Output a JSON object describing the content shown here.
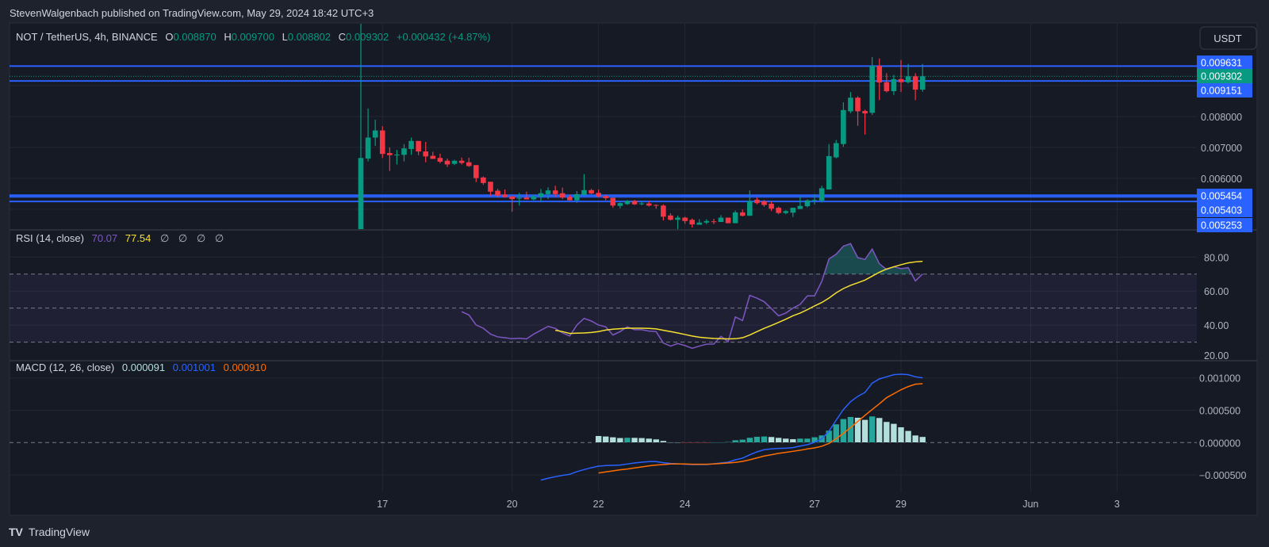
{
  "publisher_line": "StevenWalgenbach published on TradingView.com, May 29, 2024 18:42 UTC+3",
  "legend": {
    "symbol": "NOT / TetherUS, 4h, BINANCE",
    "o_label": "O",
    "o": "0.008870",
    "h_label": "H",
    "h": "0.009700",
    "l_label": "L",
    "l": "0.008802",
    "c_label": "C",
    "c": "0.009302",
    "change": "+0.000432 (+4.87%)"
  },
  "currency_button": "USDT",
  "colors": {
    "up": "#089981",
    "down": "#f23645",
    "level_line": "#2962ff",
    "rsi": "#7e57c2",
    "rsi_ma": "#f5e02f",
    "macd": "#2962ff",
    "signal": "#ff6d00",
    "hist_up_strong": "#26a69a",
    "hist_up_weak": "#b2dfdb",
    "hist_down_strong": "#ff5252",
    "hist_down_weak": "#ffcdd2"
  },
  "price_axis": {
    "ticks": [
      "0.008000",
      "0.007000",
      "0.006000"
    ],
    "tick_values": [
      0.008,
      0.007,
      0.006
    ],
    "levels": [
      {
        "label": "0.009631",
        "value": 0.009631
      },
      {
        "label": "0.009151",
        "value": 0.009151
      },
      {
        "label": "0.005454",
        "value": 0.005454
      },
      {
        "label": "0.005403",
        "value": 0.005403
      },
      {
        "label": "0.005253",
        "value": 0.005253
      }
    ],
    "last_price": {
      "label": "0.009302",
      "value": 0.009302
    }
  },
  "time_axis": {
    "labels": [
      "17",
      "20",
      "22",
      "24",
      "27",
      "29",
      "Jun",
      "3"
    ],
    "label_candle_index": [
      3,
      21,
      33,
      45,
      63,
      75,
      93,
      105
    ]
  },
  "rsi": {
    "title": "RSI (14, close)",
    "value": "70.07",
    "ma_value": "77.54",
    "empty_values": [
      "∅",
      "∅",
      "∅",
      "∅"
    ],
    "axis": [
      "80.00",
      "60.00",
      "40.00",
      "20.00"
    ],
    "axis_values": [
      80,
      60,
      40,
      20
    ],
    "band": [
      30,
      70
    ],
    "middle": 50
  },
  "macd": {
    "title": "MACD (12, 26, close)",
    "hist_value": "0.000091",
    "macd_value": "0.001001",
    "signal_value": "0.000910",
    "axis": [
      "0.001000",
      "0.000500",
      "0.000000",
      "−0.000500"
    ],
    "axis_values": [
      0.001,
      0.0005,
      0,
      -0.0005
    ]
  },
  "footer_brand": "TradingView",
  "chart_data": {
    "type": "candlestick",
    "interval": "4h",
    "first_candle": "May 16 12:00",
    "ohlc": [
      [
        0.004,
        0.011,
        0.004,
        0.00666
      ],
      [
        0.00664,
        0.00826,
        0.00655,
        0.00732
      ],
      [
        0.00732,
        0.0079,
        0.00705,
        0.00755
      ],
      [
        0.00755,
        0.00769,
        0.00666,
        0.00679
      ],
      [
        0.00682,
        0.007,
        0.00624,
        0.00675
      ],
      [
        0.00675,
        0.00692,
        0.00645,
        0.00677
      ],
      [
        0.00676,
        0.00711,
        0.00655,
        0.00697
      ],
      [
        0.00695,
        0.00732,
        0.00676,
        0.00721
      ],
      [
        0.00721,
        0.00721,
        0.00675,
        0.00687
      ],
      [
        0.00687,
        0.00718,
        0.00652,
        0.00671
      ],
      [
        0.00673,
        0.00686,
        0.00663,
        0.00663
      ],
      [
        0.00666,
        0.0068,
        0.00649,
        0.00654
      ],
      [
        0.00657,
        0.00664,
        0.00637,
        0.00645
      ],
      [
        0.00647,
        0.0066,
        0.00643,
        0.00657
      ],
      [
        0.00657,
        0.00667,
        0.00645,
        0.0065
      ],
      [
        0.00652,
        0.00667,
        0.00637,
        0.0064
      ],
      [
        0.00643,
        0.00643,
        0.00588,
        0.00601
      ],
      [
        0.00603,
        0.00606,
        0.00579,
        0.00585
      ],
      [
        0.00589,
        0.00589,
        0.00543,
        0.00557
      ],
      [
        0.0056,
        0.00566,
        0.00538,
        0.00544
      ],
      [
        0.00548,
        0.00564,
        0.00538,
        0.0054
      ],
      [
        0.00542,
        0.00542,
        0.00492,
        0.00533
      ],
      [
        0.00536,
        0.00553,
        0.00512,
        0.00537
      ],
      [
        0.00538,
        0.00557,
        0.00532,
        0.00532
      ],
      [
        0.00532,
        0.00547,
        0.00529,
        0.00542
      ],
      [
        0.00541,
        0.00566,
        0.00525,
        0.00552
      ],
      [
        0.00549,
        0.00571,
        0.00533,
        0.00561
      ],
      [
        0.00561,
        0.00576,
        0.0054,
        0.00549
      ],
      [
        0.00552,
        0.0057,
        0.00533,
        0.00538
      ],
      [
        0.0054,
        0.00547,
        0.00529,
        0.00529
      ],
      [
        0.00529,
        0.00559,
        0.00521,
        0.00549
      ],
      [
        0.00546,
        0.00614,
        0.00546,
        0.00562
      ],
      [
        0.00562,
        0.00566,
        0.00549,
        0.00551
      ],
      [
        0.00553,
        0.00564,
        0.00539,
        0.00542
      ],
      [
        0.00543,
        0.00547,
        0.00529,
        0.00536
      ],
      [
        0.00537,
        0.00537,
        0.00505,
        0.00512
      ],
      [
        0.00511,
        0.00522,
        0.00503,
        0.0052
      ],
      [
        0.00517,
        0.0053,
        0.00514,
        0.00527
      ],
      [
        0.00527,
        0.0053,
        0.00514,
        0.00516
      ],
      [
        0.00518,
        0.00527,
        0.00513,
        0.00519
      ],
      [
        0.00519,
        0.00527,
        0.00509,
        0.00512
      ],
      [
        0.00514,
        0.00516,
        0.00502,
        0.00513
      ],
      [
        0.00512,
        0.00516,
        0.00464,
        0.00476
      ],
      [
        0.0048,
        0.00487,
        0.00464,
        0.00466
      ],
      [
        0.00466,
        0.0048,
        0.00434,
        0.00473
      ],
      [
        0.00473,
        0.00476,
        0.00453,
        0.00462
      ],
      [
        0.00466,
        0.0047,
        0.00441,
        0.00451
      ],
      [
        0.0045,
        0.00468,
        0.0045,
        0.00457
      ],
      [
        0.00457,
        0.00468,
        0.00452,
        0.00462
      ],
      [
        0.00461,
        0.00469,
        0.00452,
        0.0046
      ],
      [
        0.00459,
        0.00481,
        0.00459,
        0.00473
      ],
      [
        0.00473,
        0.00473,
        0.00455,
        0.00455
      ],
      [
        0.00455,
        0.00496,
        0.00455,
        0.0049
      ],
      [
        0.0049,
        0.00499,
        0.00477,
        0.00479
      ],
      [
        0.00479,
        0.00561,
        0.00479,
        0.00527
      ],
      [
        0.00531,
        0.00538,
        0.00516,
        0.0052
      ],
      [
        0.00526,
        0.0053,
        0.00508,
        0.00514
      ],
      [
        0.00518,
        0.00525,
        0.00494,
        0.00502
      ],
      [
        0.00505,
        0.00509,
        0.00484,
        0.00488
      ],
      [
        0.00488,
        0.00497,
        0.00484,
        0.00494
      ],
      [
        0.00489,
        0.00505,
        0.00475,
        0.00505
      ],
      [
        0.00501,
        0.00542,
        0.00501,
        0.00511
      ],
      [
        0.0051,
        0.00532,
        0.00506,
        0.00529
      ],
      [
        0.00528,
        0.00549,
        0.00515,
        0.0053
      ],
      [
        0.00528,
        0.00576,
        0.00522,
        0.00568
      ],
      [
        0.00564,
        0.00711,
        0.00564,
        0.00672
      ],
      [
        0.00668,
        0.00724,
        0.00665,
        0.00714
      ],
      [
        0.00711,
        0.00846,
        0.00702,
        0.00821
      ],
      [
        0.00817,
        0.00879,
        0.00811,
        0.00861
      ],
      [
        0.00861,
        0.00866,
        0.0077,
        0.00817
      ],
      [
        0.00818,
        0.00822,
        0.00742,
        0.0081
      ],
      [
        0.00812,
        0.00992,
        0.00805,
        0.00964
      ],
      [
        0.00964,
        0.00988,
        0.00853,
        0.0091
      ],
      [
        0.00911,
        0.0094,
        0.00878,
        0.00882
      ],
      [
        0.00882,
        0.00935,
        0.0087,
        0.00921
      ],
      [
        0.00921,
        0.00983,
        0.00879,
        0.00911
      ],
      [
        0.00911,
        0.0097,
        0.00907,
        0.0093
      ],
      [
        0.0093,
        0.0094,
        0.00853,
        0.00887
      ],
      [
        0.00887,
        0.0097,
        0.008802,
        0.009302
      ]
    ],
    "rsi_start_index": 14,
    "rsi": [
      47.9,
      46.0,
      40.1,
      38.2,
      34.7,
      33.1,
      32.6,
      32.0,
      32.3,
      31.9,
      34.7,
      37.0,
      39.3,
      38.1,
      35.4,
      33.6,
      40.1,
      44.0,
      42.4,
      40.1,
      39.0,
      34.2,
      36.2,
      39.0,
      37.3,
      37.3,
      36.5,
      36.2,
      29.5,
      27.7,
      29.2,
      28.0,
      26.4,
      27.7,
      28.8,
      28.9,
      33.4,
      30.3,
      44.8,
      42.7,
      57.5,
      55.9,
      53.8,
      49.7,
      45.5,
      47.1,
      50.0,
      52.2,
      57.2,
      57.2,
      65.7,
      78.9,
      81.7,
      86.4,
      87.9,
      79.7,
      78.6,
      84.7,
      76.1,
      72.7,
      74.3,
      73.2,
      73.8,
      66.0,
      70.07
    ],
    "rsi_ma_start_index": 27,
    "rsi_ma": [
      37.0,
      36.2,
      35.1,
      35.3,
      35.4,
      35.7,
      36.2,
      37.1,
      37.6,
      37.9,
      38.2,
      38.2,
      38.2,
      38.1,
      37.8,
      37.0,
      36.2,
      35.4,
      34.5,
      33.6,
      32.9,
      32.5,
      32.2,
      32.0,
      31.9,
      32.0,
      32.6,
      34.2,
      36.2,
      38.1,
      39.8,
      41.6,
      43.5,
      45.5,
      47.1,
      49.1,
      51.3,
      53.3,
      55.9,
      59.0,
      61.5,
      63.4,
      64.9,
      66.5,
      68.8,
      71.1,
      73.0,
      74.3,
      75.5,
      76.6,
      77.2,
      77.54
    ],
    "macd_start_index": 25,
    "macd_line": [
      -0.00058,
      -0.000551,
      -0.000527,
      -0.000507,
      -0.00049,
      -0.000449,
      -0.000417,
      -0.000388,
      -0.000364,
      -0.000355,
      -0.000351,
      -0.000347,
      -0.000331,
      -0.000315,
      -0.000302,
      -0.000294,
      -0.000294,
      -0.00031,
      -0.000323,
      -0.000327,
      -0.000335,
      -0.000339,
      -0.000339,
      -0.000339,
      -0.000327,
      -0.000315,
      -0.000302,
      -0.000266,
      -0.000241,
      -0.000188,
      -0.000143,
      -0.00011,
      -9.8e-05,
      -9e-05,
      -8.6e-05,
      -7.8e-05,
      -5.3e-05,
      -3.3e-05,
      4e-06,
      5.7e-05,
      0.000176,
      0.000347,
      0.000511,
      0.000633,
      0.000715,
      0.000776,
      0.000919,
      0.000984,
      0.001017,
      0.00105,
      0.001058,
      0.00105,
      0.001017,
      0.001001
    ],
    "signal_start_index": 33,
    "signal_line": [
      -0.00047,
      -0.000453,
      -0.000437,
      -0.000421,
      -0.000409,
      -0.000392,
      -0.000376,
      -0.000359,
      -0.000347,
      -0.000339,
      -0.000331,
      -0.000331,
      -0.000331,
      -0.000335,
      -0.000335,
      -0.000335,
      -0.000331,
      -0.000323,
      -0.000315,
      -0.000306,
      -0.00029,
      -0.000266,
      -0.000237,
      -0.000208,
      -0.000188,
      -0.000167,
      -0.000151,
      -0.000135,
      -0.000118,
      -9.8e-05,
      -8.2e-05,
      -5.7e-05,
      -1.2e-05,
      6.1e-05,
      0.000143,
      0.000233,
      0.000327,
      0.000421,
      0.000511,
      0.0006,
      0.000694,
      0.000756,
      0.000817,
      0.000866,
      0.000903,
      0.00091
    ]
  }
}
